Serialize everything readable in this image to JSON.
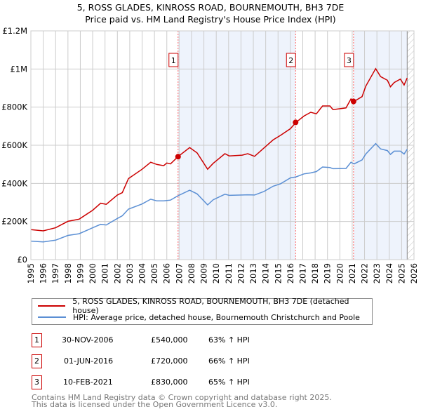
{
  "chart_data": {
    "type": "line",
    "title": "5, ROSS GLADES, KINROSS ROAD, BOURNEMOUTH, BH3 7DE",
    "subtitle": "Price paid vs. HM Land Registry's House Price Index (HPI)",
    "xlim": [
      1995,
      2026
    ],
    "ylim": [
      0,
      1200000
    ],
    "x_ticks": [
      "1995",
      "1996",
      "1997",
      "1998",
      "1999",
      "2000",
      "2001",
      "2002",
      "2003",
      "2004",
      "2005",
      "2006",
      "2007",
      "2008",
      "2009",
      "2010",
      "2011",
      "2012",
      "2013",
      "2014",
      "2015",
      "2016",
      "2017",
      "2018",
      "2019",
      "2020",
      "2021",
      "2022",
      "2023",
      "2024",
      "2025",
      "2026"
    ],
    "y_ticks": [
      {
        "v": 0,
        "label": "£0"
      },
      {
        "v": 200000,
        "label": "£200K"
      },
      {
        "v": 400000,
        "label": "£400K"
      },
      {
        "v": 600000,
        "label": "£600K"
      },
      {
        "v": 800000,
        "label": "£800K"
      },
      {
        "v": 1000000,
        "label": "£1M"
      },
      {
        "v": 1200000,
        "label": "£1.2M"
      }
    ],
    "grid": true,
    "x": [
      1995.0,
      1996.0,
      1997.0,
      1998.0,
      1998.9,
      2000.0,
      2000.65,
      2001.1,
      2002.0,
      2002.4,
      2002.9,
      2004.0,
      2004.7,
      2005.2,
      2005.75,
      2006.0,
      2006.3,
      2006.9,
      2007.85,
      2008.45,
      2009.3,
      2009.75,
      2010.7,
      2011.05,
      2012.1,
      2012.55,
      2013.1,
      2013.85,
      2014.6,
      2015.2,
      2016.0,
      2016.45,
      2017.1,
      2017.65,
      2018.1,
      2018.6,
      2019.2,
      2019.45,
      2020.5,
      2020.9,
      2021.15,
      2021.8,
      2022.1,
      2022.9,
      2023.3,
      2023.85,
      2024.1,
      2024.4,
      2024.9,
      2025.2,
      2025.45
    ],
    "series": [
      {
        "name": "5, ROSS GLADES, KINROSS ROAD, BOURNEMOUTH, BH3 7DE (detached house)",
        "color": "#cc0000",
        "values": [
          157000,
          151000,
          167000,
          201000,
          212000,
          259000,
          296000,
          290000,
          339000,
          351000,
          425000,
          474000,
          511000,
          499000,
          493000,
          507000,
          502000,
          540000,
          588000,
          560000,
          474000,
          505000,
          556000,
          544000,
          548000,
          556000,
          542000,
          585000,
          628000,
          652000,
          687000,
          720000,
          753000,
          773000,
          765000,
          806000,
          806000,
          787000,
          796000,
          843000,
          830000,
          855000,
          910000,
          1002000,
          960000,
          941000,
          907000,
          929000,
          947000,
          916000,
          953000
        ]
      },
      {
        "name": "HPI: Average price, detached house, Bournemouth Christchurch and Poole",
        "color": "#5b8fd4",
        "values": [
          97000,
          93000,
          102000,
          127000,
          136000,
          167000,
          185000,
          182000,
          216000,
          230000,
          265000,
          292000,
          317000,
          308000,
          308000,
          310000,
          312000,
          335000,
          364000,
          345000,
          287000,
          314000,
          343000,
          337000,
          339000,
          340000,
          339000,
          357000,
          385000,
          398000,
          429000,
          434000,
          450000,
          455000,
          462000,
          486000,
          483000,
          477000,
          478000,
          511000,
          502000,
          523000,
          554000,
          609000,
          581000,
          572000,
          552000,
          569000,
          569000,
          554000,
          579000
        ]
      }
    ],
    "sales": [
      {
        "id": "1",
        "date": "30-NOV-2006",
        "x": 2006.91,
        "price": "£540,000",
        "value": 540000,
        "hpi": "63% ↑ HPI"
      },
      {
        "id": "2",
        "date": "01-JUN-2016",
        "x": 2016.42,
        "price": "£720,000",
        "value": 720000,
        "hpi": "66% ↑ HPI"
      },
      {
        "id": "3",
        "date": "10-FEB-2021",
        "x": 2021.11,
        "price": "£830,000",
        "value": 830000,
        "hpi": "65% ↑ HPI"
      }
    ],
    "data_end": 2025.45,
    "legend_placement": "bottom"
  },
  "footer": {
    "line1": "Contains HM Land Registry data © Crown copyright and database right 2025.",
    "line2": "This data is licensed under the Open Government Licence v3.0."
  }
}
